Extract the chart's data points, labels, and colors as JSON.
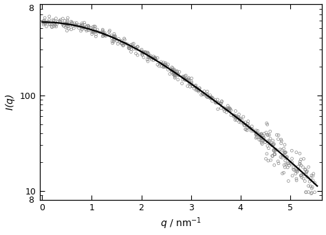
{
  "title": "",
  "xlabel": "$q$ / nm$^{-1}$",
  "ylabel": "$I$($q$)",
  "xlim": [
    -0.05,
    5.65
  ],
  "ylim": [
    8,
    900
  ],
  "xticks": [
    0,
    1,
    2,
    3,
    4,
    5
  ],
  "ytick_labels": [
    "10",
    "100"
  ],
  "ytick_values": [
    10,
    100
  ],
  "scatter_color": "#888888",
  "line_color": "#000000",
  "background_color": "#ffffff",
  "scatter_size": 8,
  "line_width": 1.6,
  "q0_intensity": 500,
  "noise_low": 0.06,
  "noise_high": 0.22,
  "high_q_threshold": 4.5,
  "seed": 12
}
